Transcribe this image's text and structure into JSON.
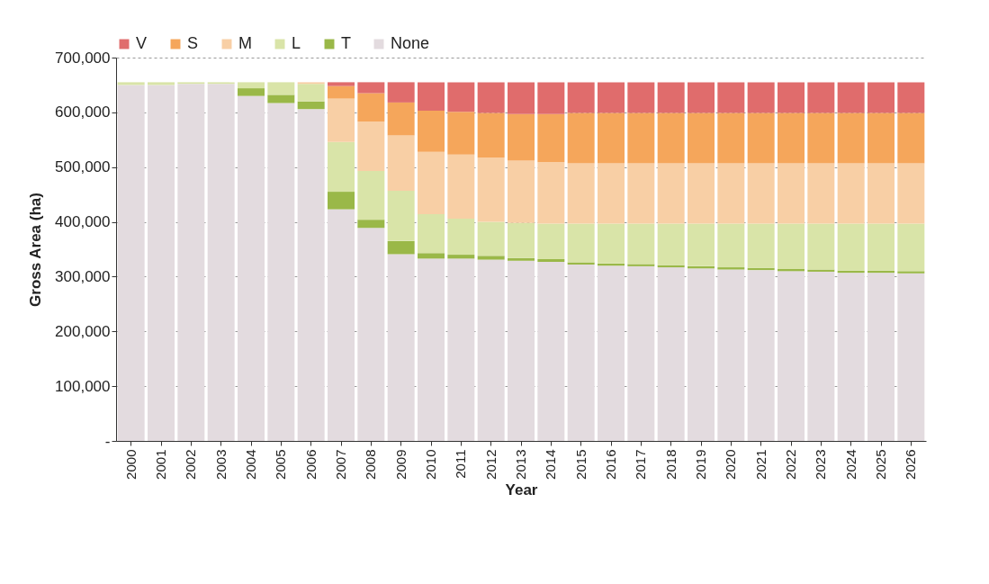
{
  "chart_data": {
    "type": "bar",
    "stacked": true,
    "xlabel": "Year",
    "ylabel": "Gross Area (ha)",
    "categories": [
      "2000",
      "2001",
      "2002",
      "2003",
      "2004",
      "2005",
      "2006",
      "2007",
      "2008",
      "2009",
      "2010",
      "2011",
      "2012",
      "2013",
      "2014",
      "2015",
      "2016",
      "2017",
      "2018",
      "2019",
      "2020",
      "2021",
      "2022",
      "2023",
      "2024",
      "2025",
      "2026"
    ],
    "series": [
      {
        "name": "None",
        "color": "#e3dbdf",
        "values": [
          650000,
          650000,
          652000,
          652000,
          630000,
          617000,
          606000,
          423000,
          389000,
          341000,
          333000,
          333000,
          331000,
          329000,
          327000,
          322000,
          320000,
          319000,
          317000,
          315000,
          313000,
          312000,
          310000,
          309000,
          307000,
          307000,
          306000
        ]
      },
      {
        "name": "T",
        "color": "#9ab848",
        "values": [
          0,
          0,
          0,
          0,
          14000,
          15000,
          14000,
          32000,
          15000,
          24000,
          10000,
          7000,
          7000,
          5000,
          5000,
          4000,
          4000,
          4000,
          4000,
          4000,
          4000,
          4000,
          4000,
          4000,
          4000,
          4000,
          4000
        ]
      },
      {
        "name": "L",
        "color": "#d9e4a8",
        "values": [
          5000,
          5000,
          3000,
          3000,
          11000,
          23000,
          32000,
          91000,
          89000,
          92000,
          71000,
          66000,
          62000,
          64000,
          65000,
          71000,
          73000,
          74000,
          76000,
          78000,
          80000,
          81000,
          83000,
          84000,
          86000,
          86000,
          87000
        ]
      },
      {
        "name": "M",
        "color": "#f8cfa5",
        "values": [
          0,
          0,
          0,
          0,
          0,
          0,
          3000,
          79000,
          90000,
          101000,
          114000,
          117000,
          117000,
          114000,
          112000,
          110000,
          110000,
          110000,
          110000,
          110000,
          110000,
          110000,
          110000,
          110000,
          110000,
          110000,
          110000
        ]
      },
      {
        "name": "S",
        "color": "#f5a65b",
        "values": [
          0,
          0,
          0,
          0,
          0,
          0,
          0,
          23000,
          52000,
          60000,
          75000,
          78000,
          82000,
          85000,
          88000,
          92000,
          92000,
          92000,
          92000,
          92000,
          92000,
          92000,
          92000,
          92000,
          92000,
          92000,
          92000
        ]
      },
      {
        "name": "V",
        "color": "#e06c6c",
        "values": [
          0,
          0,
          0,
          0,
          0,
          0,
          0,
          7000,
          20000,
          37000,
          52000,
          54000,
          56000,
          58000,
          58000,
          56000,
          56000,
          56000,
          56000,
          56000,
          56000,
          56000,
          56000,
          56000,
          56000,
          56000,
          56000
        ]
      }
    ],
    "ylim": [
      0,
      700000
    ],
    "yticks": [
      {
        "value": 0,
        "label": "-"
      },
      {
        "value": 100000,
        "label": "100,000"
      },
      {
        "value": 200000,
        "label": "200,000"
      },
      {
        "value": 300000,
        "label": "300,000"
      },
      {
        "value": 400000,
        "label": "400,000"
      },
      {
        "value": 500000,
        "label": "500,000"
      },
      {
        "value": 600000,
        "label": "600,000"
      },
      {
        "value": 700000,
        "label": "700,000"
      }
    ],
    "grid": "y",
    "legend": "top"
  }
}
